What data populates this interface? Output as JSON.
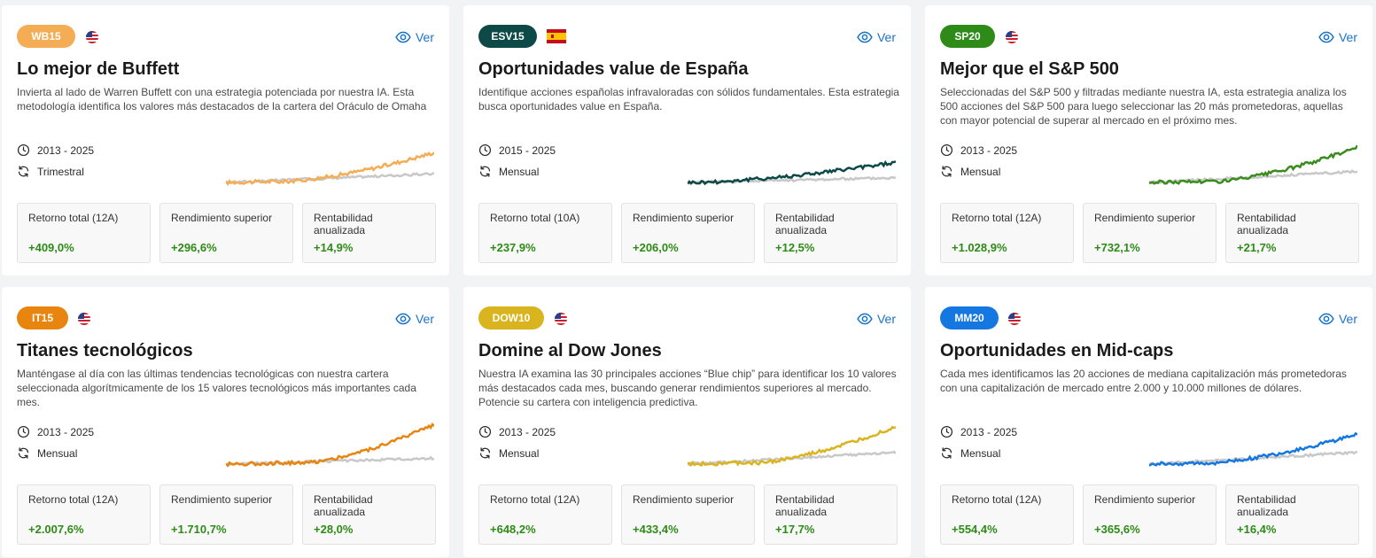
{
  "common": {
    "view_label": "Ver",
    "stat_labels": [
      "Retorno total (12A)",
      "Rendimiento superior",
      "Rentabilidad anualizada"
    ]
  },
  "cards": [
    {
      "badge": "WB15",
      "badge_color": "#f5ad55",
      "flag": "us-flag-icon",
      "title": "Lo mejor de Buffett",
      "description": "Invierta al lado de Warren Buffett con una estrategia potenciada por nuestra IA. Esta metodología identifica los valores más destacados de la cartera del Oráculo de Omaha",
      "years": "2013 - 2025",
      "frequency": "Trimestral",
      "line_color": "#f5ad55",
      "stats": [
        {
          "label": "Retorno total (12A)",
          "value": "+409,0%"
        },
        {
          "label": "Rendimiento superior",
          "value": "+296,6%"
        },
        {
          "label": "Rentabilidad anualizada",
          "value": "+14,9%"
        }
      ]
    },
    {
      "badge": "ESV15",
      "badge_color": "#0d4a47",
      "flag": "es-flag-icon",
      "title": "Oportunidades value de España",
      "description": "Identifique acciones españolas infravaloradas con sólidos fundamentales. Esta estrategia busca oportunidades value en España.",
      "years": "2015 - 2025",
      "frequency": "Mensual",
      "line_color": "#0d4a47",
      "stats": [
        {
          "label": "Retorno total (10A)",
          "value": "+237,9%"
        },
        {
          "label": "Rendimiento superior",
          "value": "+206,0%"
        },
        {
          "label": "Rentabilidad anualizada",
          "value": "+12,5%"
        }
      ]
    },
    {
      "badge": "SP20",
      "badge_color": "#2e8b17",
      "flag": "us-flag-icon",
      "title": "Mejor que el S&P 500",
      "description": "Seleccionadas del S&P 500 y filtradas mediante nuestra IA, esta estrategia analiza los 500 acciones del S&P 500 para luego seleccionar las 20 más prometedoras, aquellas con mayor potencial de superar al mercado en el próximo mes.",
      "years": "2013 - 2025",
      "frequency": "Mensual",
      "line_color": "#3a8c1c",
      "stats": [
        {
          "label": "Retorno total (12A)",
          "value": "+1.028,9%"
        },
        {
          "label": "Rendimiento superior",
          "value": "+732,1%"
        },
        {
          "label": "Rentabilidad anualizada",
          "value": "+21,7%"
        }
      ]
    },
    {
      "badge": "IT15",
      "badge_color": "#e8850f",
      "flag": "us-flag-icon",
      "title": "Titanes tecnológicos",
      "description": "Manténgase al día con las últimas tendencias tecnológicas con nuestra cartera seleccionada algorítmicamente de los 15 valores tecnológicos más importantes cada mes.",
      "years": "2013 - 2025",
      "frequency": "Mensual",
      "line_color": "#e8850f",
      "stats": [
        {
          "label": "Retorno total (12A)",
          "value": "+2.007,6%"
        },
        {
          "label": "Rendimiento superior",
          "value": "+1.710,7%"
        },
        {
          "label": "Rentabilidad anualizada",
          "value": "+28,0%"
        }
      ]
    },
    {
      "badge": "DOW10",
      "badge_color": "#d9b41e",
      "flag": "us-flag-icon",
      "title": "Domine al Dow Jones",
      "description": "Nuestra IA examina las 30 principales acciones “Blue chip” para identificar los 10 valores más destacados cada mes, buscando generar rendimientos superiores al mercado. Potencie su cartera con inteligencia predictiva.",
      "years": "2013 - 2025",
      "frequency": "Mensual",
      "line_color": "#d9b41e",
      "stats": [
        {
          "label": "Retorno total (12A)",
          "value": "+648,2%"
        },
        {
          "label": "Rendimiento superior",
          "value": "+433,4%"
        },
        {
          "label": "Rentabilidad anualizada",
          "value": "+17,7%"
        }
      ]
    },
    {
      "badge": "MM20",
      "badge_color": "#1577e0",
      "flag": "us-flag-icon",
      "title": "Oportunidades en Mid-caps",
      "description": "Cada mes identificamos las 20 acciones de mediana capitalización más prometedoras con una capitalización de mercado entre 2.000 y 10.000 millones de dólares.",
      "years": "2013 - 2025",
      "frequency": "Mensual",
      "line_color": "#1577e0",
      "stats": [
        {
          "label": "Retorno total (12A)",
          "value": "+554,4%"
        },
        {
          "label": "Rendimiento superior",
          "value": "+365,6%"
        },
        {
          "label": "Rentabilidad anualizada",
          "value": "+16,4%"
        }
      ]
    }
  ]
}
